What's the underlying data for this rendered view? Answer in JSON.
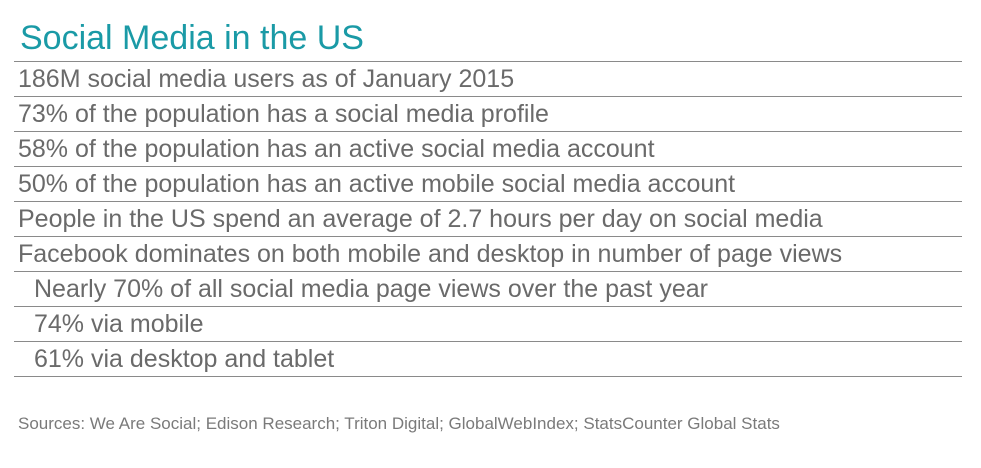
{
  "title": "Social Media in the US",
  "items": [
    {
      "text": "186M social media users as of January 2015",
      "level": 0
    },
    {
      "text": "73% of the population has a social media profile",
      "level": 0
    },
    {
      "text": "58% of the population has an active social media account",
      "level": 0
    },
    {
      "text": "50% of the population has an active mobile social media account",
      "level": 0
    },
    {
      "text": "People in the US spend an average of 2.7 hours per day on social media",
      "level": 0
    },
    {
      "text": "Facebook dominates on both mobile and desktop in number of page views",
      "level": 0
    },
    {
      "text": "Nearly 70% of all social media page views over the past year",
      "level": 1
    },
    {
      "text": "74% via mobile",
      "level": 1
    },
    {
      "text": "61% via desktop and tablet",
      "level": 1
    }
  ],
  "sources": "Sources: We Are Social; Edison Research; Triton Digital; GlobalWebIndex; StatsCounter Global Stats",
  "colors": {
    "title": "#1a9aa6",
    "text": "#6a6a6a",
    "rule": "#8a8a8a"
  }
}
